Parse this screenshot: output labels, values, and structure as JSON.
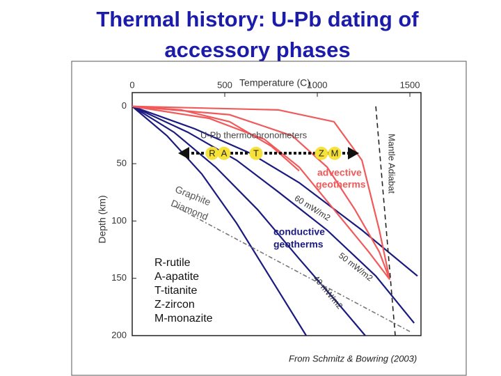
{
  "title": "Thermal history: U-Pb dating of accessory phases",
  "chart_data": {
    "type": "line",
    "x_label": "Temperature (C)",
    "y_label": "Depth (km)",
    "xlim": [
      0,
      1560
    ],
    "ylim": [
      -12,
      200
    ],
    "y_direction": "down",
    "x_axis_position": "top",
    "xticks": [
      0,
      500,
      1000,
      1500
    ],
    "yticks": [
      0,
      50,
      100,
      150,
      200
    ],
    "series": [
      {
        "name": "60 mW/m2",
        "color": "#1a1a80",
        "style": "solid",
        "x": [
          0,
          338,
          639,
          902,
          1241,
          1541
        ],
        "values": [
          0,
          19.6,
          41,
          66.6,
          108,
          148
        ]
      },
      {
        "name": "50 mW/m2",
        "color": "#1a1a80",
        "style": "solid",
        "x": [
          0,
          301,
          564,
          789,
          1053,
          1316,
          1523
        ],
        "values": [
          0,
          22.6,
          47,
          74.6,
          108,
          148,
          189
        ]
      },
      {
        "name": "40 mW/m2",
        "color": "#1a1a80",
        "style": "solid",
        "x": [
          0,
          226,
          451,
          677,
          902,
          1128,
          1259
        ],
        "values": [
          0,
          22.6,
          53,
          90,
          133,
          175,
          200
        ]
      },
      {
        "name": null,
        "color": "#1a1a80",
        "style": "solid",
        "x": [
          0,
          188,
          376,
          564,
          752,
          940
        ],
        "values": [
          0,
          25.7,
          59,
          102,
          151,
          200
        ]
      },
      {
        "name": null,
        "color": "#f05a5a",
        "style": "solid",
        "x": [
          0,
          526,
          865,
          1053,
          1203,
          1335,
          1391
        ],
        "values": [
          0,
          7.3,
          25.7,
          53,
          90,
          127,
          151
        ]
      },
      {
        "name": null,
        "color": "#f05a5a",
        "style": "solid",
        "x": [
          0,
          414,
          714,
          902,
          1090,
          1278,
          1391
        ],
        "values": [
          0,
          10.4,
          28.7,
          53,
          90,
          127,
          151
        ]
      },
      {
        "name": null,
        "color": "#f05a5a",
        "style": "solid",
        "x": [
          0,
          263,
          526,
          752,
          902
        ],
        "values": [
          0,
          3.1,
          13.4,
          34.8,
          56.2
        ]
      },
      {
        "name": null,
        "color": "#f05a5a",
        "style": "solid",
        "x": [
          0,
          789,
          1090,
          1241,
          1335,
          1391
        ],
        "values": [
          0,
          3.1,
          13.4,
          47,
          108,
          151
        ]
      },
      {
        "name": "Mantle Adiabat",
        "color": "#222222",
        "style": "dashed",
        "x": [
          1316,
          1421
        ],
        "values": [
          0,
          200
        ]
      },
      {
        "name": null,
        "color": "#777777",
        "style": "dashdot",
        "x": [
          226,
          1504
        ],
        "values": [
          86.8,
          196.8
        ]
      }
    ],
    "points": {
      "labels": [
        "R",
        "A",
        "T",
        "Z",
        "M"
      ],
      "color": "#f7e23a",
      "x": [
        432,
        496,
        669,
        1022,
        1094
      ],
      "values": [
        41,
        41,
        41,
        41,
        41
      ]
    },
    "annotations": [
      "U-Pb thermochronometers",
      "advective",
      "geotherms",
      "conductive",
      "geotherms",
      "Graphite",
      "Diamond"
    ],
    "key": [
      "R-rutile",
      "A-apatite",
      "T-titanite",
      "Z-zircon",
      "M-monazite"
    ],
    "source": "From Schmitz & Bowring (2003)"
  }
}
